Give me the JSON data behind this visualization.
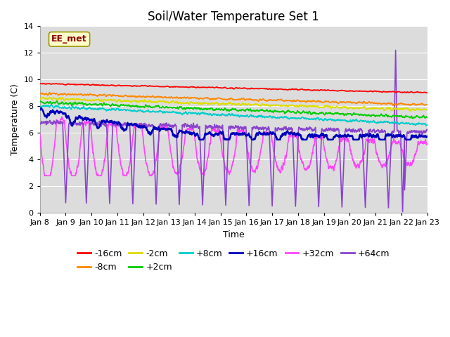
{
  "title": "Soil/Water Temperature Set 1",
  "xlabel": "Time",
  "ylabel": "Temperature (C)",
  "ylim": [
    0,
    14
  ],
  "xlim": [
    0,
    15
  ],
  "background_color": "#e8e8e8",
  "plot_bg": "#dcdcdc",
  "annotation_text": "EE_met",
  "annotation_bg": "#ffffcc",
  "annotation_border": "#999900",
  "xtick_labels": [
    "Jan 8",
    "Jan 9",
    "Jan 10",
    "Jan 11",
    "Jan 12",
    "Jan 13",
    "Jan 14",
    "Jan 15",
    "Jan 16",
    "Jan 17",
    "Jan 18",
    "Jan 19",
    "Jan 20",
    "Jan 21",
    "Jan 22",
    "Jan 23"
  ],
  "series": {
    "-16cm": {
      "color": "#ff0000",
      "linewidth": 1.2,
      "zorder": 5
    },
    "-8cm": {
      "color": "#ff8800",
      "linewidth": 1.2,
      "zorder": 5
    },
    "-2cm": {
      "color": "#dddd00",
      "linewidth": 1.2,
      "zorder": 5
    },
    "+2cm": {
      "color": "#00cc00",
      "linewidth": 1.2,
      "zorder": 5
    },
    "+8cm": {
      "color": "#00cccc",
      "linewidth": 1.2,
      "zorder": 5
    },
    "+16cm": {
      "color": "#0000bb",
      "linewidth": 1.8,
      "zorder": 5
    },
    "+32cm": {
      "color": "#ff44ff",
      "linewidth": 1.2,
      "zorder": 4
    },
    "+64cm": {
      "color": "#8844cc",
      "linewidth": 1.2,
      "zorder": 4
    }
  },
  "title_fontsize": 12,
  "tick_label_fontsize": 8,
  "axis_label_fontsize": 9,
  "legend_fontsize": 9
}
